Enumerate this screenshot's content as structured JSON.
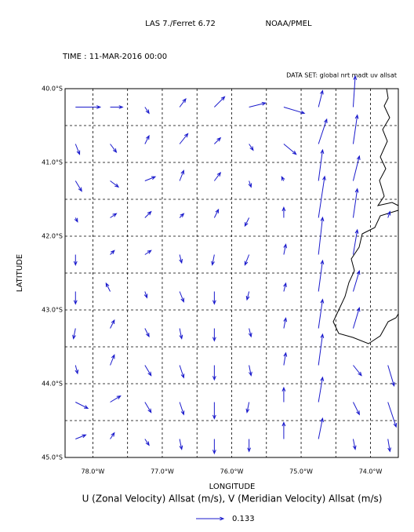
{
  "chart_data": {
    "type": "quiver",
    "header_left": "LAS 7./Ferret 6.72",
    "header_right": "NOAA/PMEL",
    "time_label": "TIME : 11-MAR-2016 00:00",
    "dataset_label": "DATA SET: global nrt madt uv allsat",
    "x_label": "LONGITUDE",
    "y_label": "LATITUDE",
    "title": "U (Zonal Velocity) Allsat (m/s), V (Meridian Velocity) Allsat (m/s)",
    "color": "#1a1acc",
    "xlim": [
      -78.4,
      -73.6
    ],
    "ylim": [
      -45,
      -40
    ],
    "xticks": [
      {
        "value": -78,
        "label": "78.0°W"
      },
      {
        "value": -77,
        "label": "77.0°W"
      },
      {
        "value": -76,
        "label": "76.0°W"
      },
      {
        "value": -75,
        "label": "75.0°W"
      },
      {
        "value": -74,
        "label": "74.0°W"
      }
    ],
    "yticks": [
      {
        "value": -40,
        "label": "40.0°S"
      },
      {
        "value": -41,
        "label": "41.0°S"
      },
      {
        "value": -42,
        "label": "42.0°S"
      },
      {
        "value": -43,
        "label": "43.0°S"
      },
      {
        "value": -44,
        "label": "44.0°S"
      },
      {
        "value": -45,
        "label": "45.0°S"
      }
    ],
    "x_minor_ticks": [
      -77.5,
      -76.5,
      -75.5,
      -74.5
    ],
    "y_minor_ticks": [
      -40.5,
      -41.5,
      -42.5,
      -43.5,
      -44.5
    ],
    "grid": true,
    "x": [
      -78.25,
      -77.75,
      -77.25,
      -76.75,
      -76.25,
      -75.75,
      -75.25,
      -74.75,
      -74.25,
      -73.75
    ],
    "y": [
      -40.25,
      -40.75,
      -41.25,
      -41.75,
      -42.25,
      -42.75,
      -43.25,
      -43.75,
      -44.25,
      -44.75
    ],
    "u": [
      [
        0.12,
        0.06,
        0.02,
        0.03,
        0.05,
        0.08,
        0.1,
        0.02,
        0.01,
        null
      ],
      [
        0.02,
        0.03,
        0.02,
        0.04,
        0.03,
        0.02,
        0.06,
        0.04,
        0.02,
        null
      ],
      [
        0.03,
        0.04,
        0.05,
        0.02,
        0.03,
        0.01,
        -0.01,
        0.02,
        0.03,
        null
      ],
      [
        0.01,
        0.03,
        0.03,
        0.02,
        0.02,
        -0.02,
        0.0,
        0.03,
        0.02,
        0.01
      ],
      [
        0.0,
        0.02,
        0.03,
        0.01,
        -0.01,
        -0.02,
        0.01,
        0.02,
        0.02,
        null
      ],
      [
        0.0,
        -0.02,
        0.01,
        0.02,
        0.0,
        -0.01,
        0.01,
        0.02,
        0.03,
        null
      ],
      [
        -0.01,
        0.02,
        0.02,
        0.01,
        0.0,
        0.01,
        0.01,
        0.02,
        0.03,
        null
      ],
      [
        0.01,
        0.02,
        0.03,
        0.02,
        0.0,
        0.01,
        0.01,
        0.02,
        0.04,
        0.03
      ],
      [
        0.06,
        0.05,
        0.03,
        0.02,
        0.0,
        -0.01,
        0.0,
        0.02,
        0.03,
        0.04
      ],
      [
        0.05,
        0.02,
        0.02,
        0.01,
        0.0,
        0.0,
        0.0,
        0.02,
        0.01,
        0.01
      ]
    ],
    "v": [
      [
        0.0,
        0.0,
        -0.03,
        0.04,
        0.05,
        0.02,
        -0.03,
        0.08,
        0.15,
        null
      ],
      [
        -0.05,
        -0.04,
        0.04,
        0.05,
        0.03,
        -0.03,
        -0.05,
        0.12,
        0.14,
        null
      ],
      [
        -0.05,
        -0.03,
        0.02,
        0.05,
        0.04,
        -0.03,
        0.02,
        0.15,
        0.12,
        null
      ],
      [
        -0.02,
        0.02,
        0.03,
        0.02,
        0.04,
        -0.04,
        0.05,
        0.2,
        0.14,
        0.03
      ],
      [
        -0.05,
        0.02,
        0.02,
        -0.04,
        -0.05,
        -0.05,
        0.05,
        0.18,
        0.12,
        null
      ],
      [
        -0.06,
        0.04,
        -0.03,
        -0.05,
        -0.06,
        -0.04,
        0.04,
        0.15,
        0.1,
        null
      ],
      [
        -0.05,
        0.04,
        -0.04,
        -0.05,
        -0.06,
        -0.04,
        0.05,
        0.14,
        0.1,
        null
      ],
      [
        -0.04,
        0.05,
        -0.05,
        -0.06,
        -0.07,
        -0.05,
        0.06,
        0.15,
        -0.05,
        -0.1
      ],
      [
        -0.03,
        0.03,
        -0.05,
        -0.06,
        -0.08,
        -0.05,
        0.07,
        0.12,
        -0.06,
        -0.12
      ],
      [
        0.02,
        0.03,
        -0.03,
        -0.05,
        -0.07,
        -0.06,
        0.08,
        0.1,
        -0.05,
        -0.06
      ]
    ],
    "reference_vector": 0.133
  }
}
